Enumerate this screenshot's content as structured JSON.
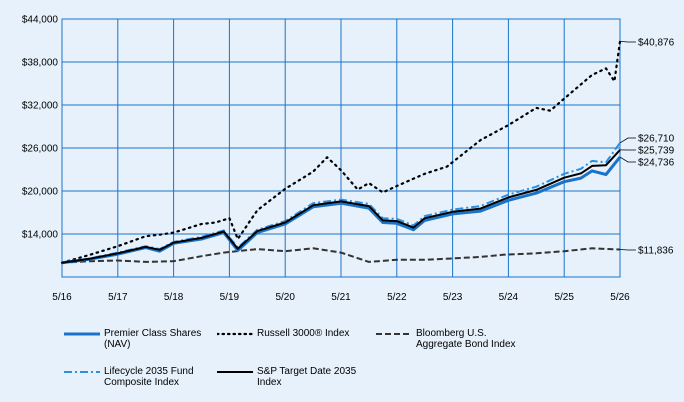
{
  "chart_data": {
    "type": "line",
    "ylim": [
      8000,
      44000
    ],
    "yticks": [
      "$14,000",
      "$20,000",
      "$26,000",
      "$32,000",
      "$38,000",
      "$44,000"
    ],
    "ytick_values": [
      14000,
      20000,
      26000,
      32000,
      38000,
      44000
    ],
    "xticks": [
      "5/16",
      "5/17",
      "5/18",
      "5/19",
      "5/20",
      "5/21",
      "5/22",
      "5/23",
      "5/24",
      "5/25",
      "5/26"
    ],
    "grid": true,
    "legend_position": "bottom",
    "series": [
      {
        "name": "Premier Class Shares (NAV)",
        "color": "#1a73c9",
        "style": "solid-thick",
        "end_label": "$24,736",
        "values": [
          [
            0,
            10000
          ],
          [
            0.5,
            10500
          ],
          [
            1,
            11200
          ],
          [
            1.5,
            12100
          ],
          [
            1.75,
            11600
          ],
          [
            2,
            12700
          ],
          [
            2.5,
            13300
          ],
          [
            2.9,
            14200
          ],
          [
            3.15,
            11700
          ],
          [
            3.5,
            14200
          ],
          [
            4,
            15400
          ],
          [
            4.5,
            17800
          ],
          [
            5,
            18300
          ],
          [
            5.5,
            17600
          ],
          [
            5.75,
            15600
          ],
          [
            6,
            15500
          ],
          [
            6.3,
            14600
          ],
          [
            6.5,
            15900
          ],
          [
            7,
            16800
          ],
          [
            7.5,
            17200
          ],
          [
            8,
            18700
          ],
          [
            8.5,
            19700
          ],
          [
            9,
            21300
          ],
          [
            9.3,
            21800
          ],
          [
            9.5,
            22800
          ],
          [
            9.75,
            22300
          ],
          [
            10,
            24736
          ]
        ]
      },
      {
        "name": "Russell 3000® Index",
        "color": "#000000",
        "style": "dotted",
        "end_label": "$40,876",
        "values": [
          [
            0,
            10000
          ],
          [
            0.5,
            11100
          ],
          [
            1,
            12300
          ],
          [
            1.5,
            13700
          ],
          [
            1.75,
            13900
          ],
          [
            2,
            14200
          ],
          [
            2.5,
            15400
          ],
          [
            2.75,
            15600
          ],
          [
            3,
            16200
          ],
          [
            3.15,
            13300
          ],
          [
            3.5,
            17300
          ],
          [
            4,
            20300
          ],
          [
            4.5,
            22700
          ],
          [
            4.75,
            24700
          ],
          [
            5,
            22900
          ],
          [
            5.3,
            20200
          ],
          [
            5.5,
            21100
          ],
          [
            5.75,
            19800
          ],
          [
            6,
            20700
          ],
          [
            6.5,
            22400
          ],
          [
            6.9,
            23400
          ],
          [
            7.5,
            27100
          ],
          [
            8,
            29200
          ],
          [
            8.5,
            31600
          ],
          [
            8.75,
            31200
          ],
          [
            9,
            32900
          ],
          [
            9.5,
            36200
          ],
          [
            9.75,
            37100
          ],
          [
            9.9,
            35300
          ],
          [
            10,
            40876
          ]
        ]
      },
      {
        "name": "Bloomberg U.S. Aggregate Bond Index",
        "color": "#333333",
        "style": "dashed",
        "end_label": "$11,836",
        "values": [
          [
            0,
            10000
          ],
          [
            0.5,
            10200
          ],
          [
            1,
            10300
          ],
          [
            1.5,
            10100
          ],
          [
            2,
            10200
          ],
          [
            2.5,
            10900
          ],
          [
            2.9,
            11400
          ],
          [
            3.25,
            11700
          ],
          [
            3.5,
            11900
          ],
          [
            4,
            11600
          ],
          [
            4.5,
            12000
          ],
          [
            5,
            11400
          ],
          [
            5.5,
            10100
          ],
          [
            6,
            10400
          ],
          [
            6.5,
            10400
          ],
          [
            7,
            10600
          ],
          [
            7.5,
            10800
          ],
          [
            7.9,
            11100
          ],
          [
            8.5,
            11300
          ],
          [
            9,
            11600
          ],
          [
            9.5,
            12000
          ],
          [
            10,
            11836
          ]
        ]
      },
      {
        "name": "Lifecycle 2035 Fund Composite Index",
        "color": "#2d8fe0",
        "style": "dashdot",
        "end_label": "$26,710",
        "values": [
          [
            0,
            10000
          ],
          [
            0.5,
            10600
          ],
          [
            1,
            11400
          ],
          [
            1.5,
            12300
          ],
          [
            1.75,
            11900
          ],
          [
            2,
            12900
          ],
          [
            2.5,
            13600
          ],
          [
            2.9,
            14500
          ],
          [
            3.15,
            12100
          ],
          [
            3.5,
            14600
          ],
          [
            4,
            15800
          ],
          [
            4.5,
            18300
          ],
          [
            5,
            18800
          ],
          [
            5.5,
            18200
          ],
          [
            5.75,
            16200
          ],
          [
            6,
            16100
          ],
          [
            6.3,
            15200
          ],
          [
            6.5,
            16500
          ],
          [
            7,
            17400
          ],
          [
            7.5,
            17900
          ],
          [
            8,
            19500
          ],
          [
            8.5,
            20600
          ],
          [
            9,
            22400
          ],
          [
            9.3,
            23100
          ],
          [
            9.5,
            24200
          ],
          [
            9.75,
            24000
          ],
          [
            10,
            26710
          ]
        ]
      },
      {
        "name": "S&P Target Date 2035 Index",
        "color": "#000000",
        "style": "solid",
        "end_label": "$25,739",
        "values": [
          [
            0,
            10000
          ],
          [
            0.5,
            10550
          ],
          [
            1,
            11300
          ],
          [
            1.5,
            12200
          ],
          [
            1.75,
            11800
          ],
          [
            2,
            12800
          ],
          [
            2.5,
            13450
          ],
          [
            2.9,
            14350
          ],
          [
            3.15,
            11950
          ],
          [
            3.5,
            14400
          ],
          [
            4,
            15600
          ],
          [
            4.5,
            18000
          ],
          [
            5,
            18550
          ],
          [
            5.5,
            17900
          ],
          [
            5.75,
            15900
          ],
          [
            6,
            15800
          ],
          [
            6.3,
            14900
          ],
          [
            6.5,
            16200
          ],
          [
            7,
            17100
          ],
          [
            7.5,
            17550
          ],
          [
            8,
            19100
          ],
          [
            8.5,
            20150
          ],
          [
            9,
            21850
          ],
          [
            9.3,
            22450
          ],
          [
            9.5,
            23500
          ],
          [
            9.75,
            23600
          ],
          [
            10,
            25739
          ]
        ]
      }
    ]
  },
  "legend": [
    {
      "label": "Premier Class Shares\n(NAV)"
    },
    {
      "label": "Russell 3000® Index"
    },
    {
      "label": "Bloomberg U.S.\nAggregate Bond Index"
    },
    {
      "label": "Lifecycle 2035 Fund\nComposite Index"
    },
    {
      "label": "S&P Target Date 2035\nIndex"
    }
  ]
}
